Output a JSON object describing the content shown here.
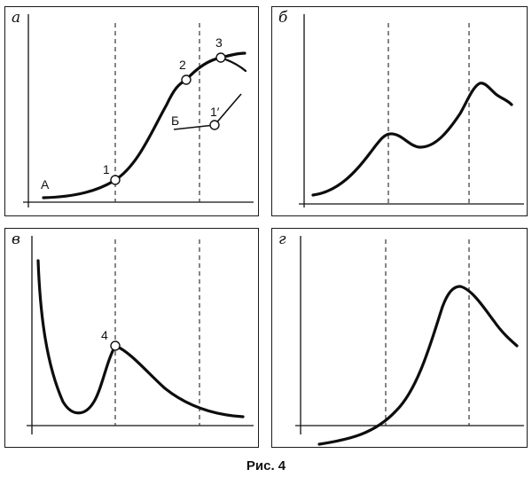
{
  "figure": {
    "caption": "Рис. 4"
  },
  "panels": {
    "a": {
      "letter": "а",
      "label_A": "А",
      "label_B": "Б",
      "points": [
        "1",
        "2",
        "3",
        "1′"
      ]
    },
    "b": {
      "letter": "б"
    },
    "v": {
      "letter": "в",
      "points": [
        "4"
      ]
    },
    "g": {
      "letter": "г"
    }
  }
}
